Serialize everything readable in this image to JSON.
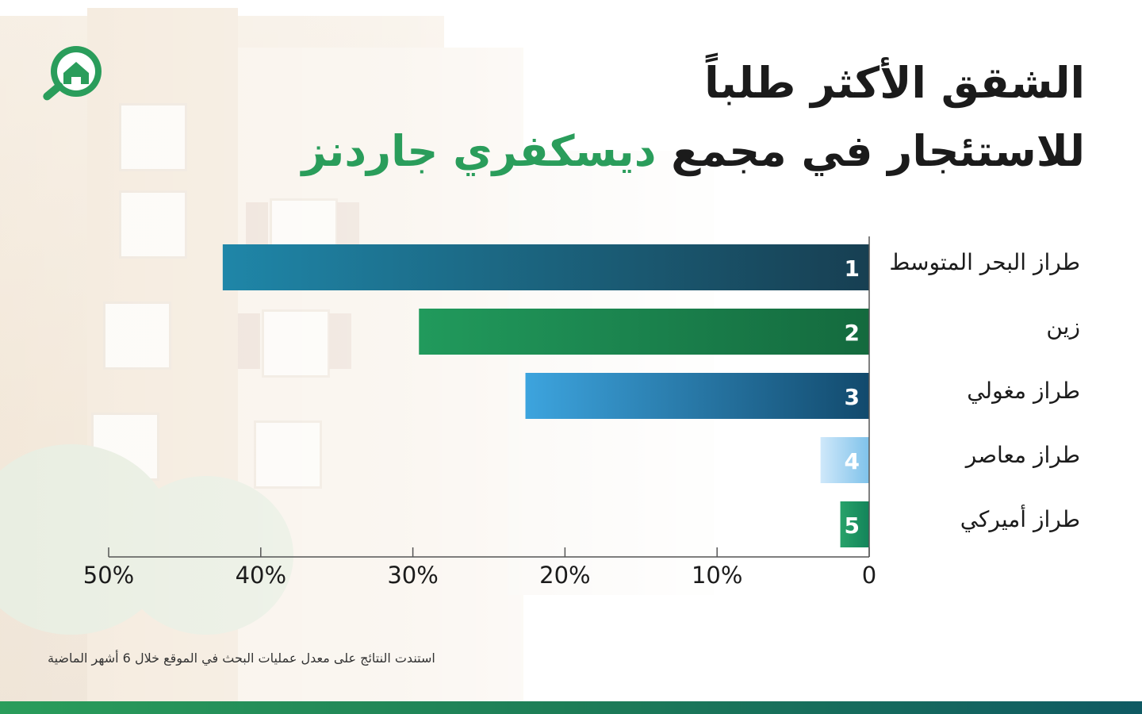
{
  "title": {
    "line1": "الشقق الأكثر طلباً",
    "line2_prefix": "للاستئجار في مجمع",
    "line2_accent": "ديسكفري جاردنز"
  },
  "logo": {
    "icon": "house-search-icon",
    "color": "#2a9d5b"
  },
  "chart_data": {
    "type": "bar",
    "orientation": "horizontal",
    "x_direction": "right-to-left",
    "categories": [
      "طراز البحر المتوسط",
      "زين",
      "طراز مغولي",
      "طراز معاصر",
      "طراز أميركي"
    ],
    "ranks": [
      "1",
      "2",
      "3",
      "4",
      "5"
    ],
    "values": [
      42.5,
      29.6,
      22.6,
      3.2,
      1.9
    ],
    "unit": "%",
    "xlim": [
      0,
      50
    ],
    "xticks": [
      0,
      10,
      20,
      30,
      40,
      50
    ],
    "xtick_labels": [
      "0",
      "10%",
      "20%",
      "30%",
      "40%",
      "50%"
    ],
    "bar_colors": [
      [
        "#1f86a8",
        "#173f52"
      ],
      [
        "#219a5c",
        "#146a3e"
      ],
      [
        "#3da4de",
        "#124a6d"
      ],
      [
        "#cfe8fa",
        "#7fc2ea"
      ],
      [
        "#27a26a",
        "#13845a"
      ]
    ],
    "grid": false
  },
  "footnote": "استندت النتائج على معدل عمليات البحث في الموقع خلال 6 أشهر الماضية"
}
